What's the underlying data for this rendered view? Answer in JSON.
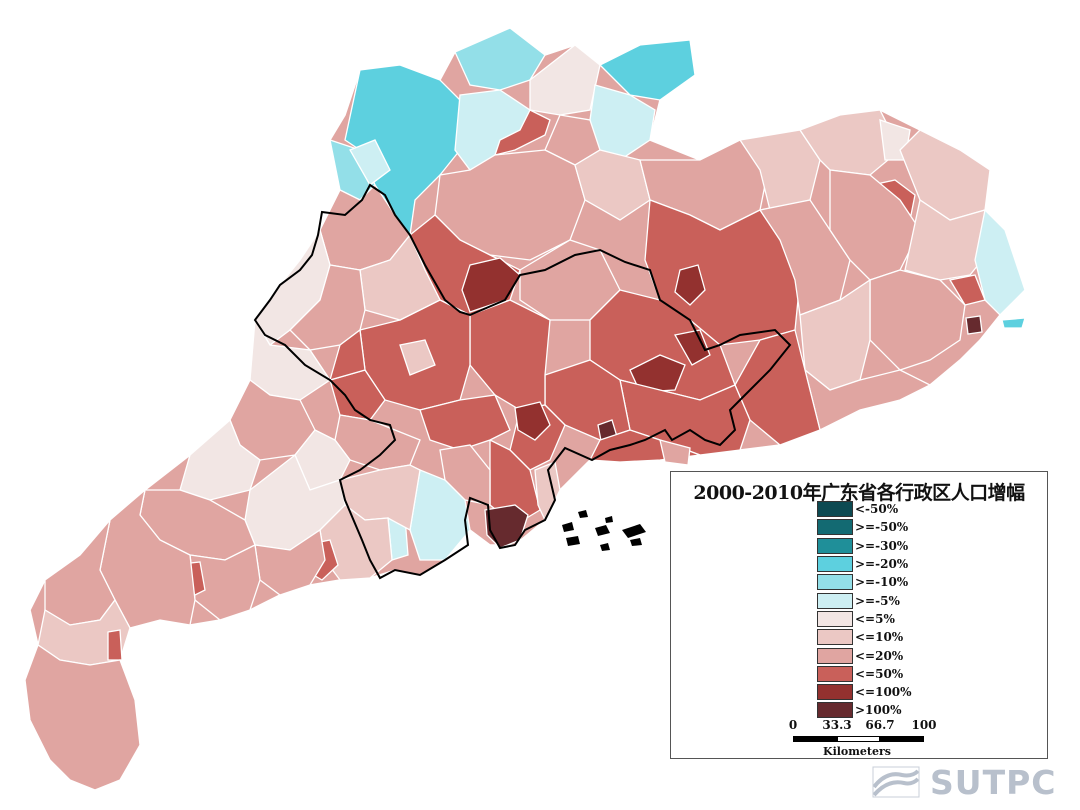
{
  "map": {
    "colors": {
      "lt_neg50": "#0d4a52",
      "ge_neg50": "#136a72",
      "ge_neg30": "#1f8f99",
      "ge_neg20": "#5dd0df",
      "ge_neg10": "#93dfe8",
      "ge_neg5": "#cdeff3",
      "le_5": "#f2e6e4",
      "le_10": "#ebc8c4",
      "le_20": "#e0a5a1",
      "le_50": "#c9605a",
      "le_100": "#93312f",
      "gt_100": "#662a2e",
      "internal_boundary": "#ffffff",
      "highlight_boundary": "#000000"
    },
    "regions": [
      {
        "name": "region",
        "class": "le_20"
      },
      {
        "name": "region",
        "class": "le_10"
      },
      {
        "name": "region",
        "class": "le_5"
      },
      {
        "name": "region",
        "class": "le_50"
      },
      {
        "name": "region",
        "class": "le_100"
      },
      {
        "name": "region",
        "class": "gt_100"
      },
      {
        "name": "region",
        "class": "ge_neg20"
      },
      {
        "name": "region",
        "class": "ge_neg10"
      },
      {
        "name": "region",
        "class": "ge_neg5"
      }
    ]
  },
  "legend": {
    "title": "2000-2010年广东省各行政区人口增幅",
    "items": [
      {
        "label": "<-50%",
        "color": "#0d4a52"
      },
      {
        "label": ">=-50%",
        "color": "#136a72"
      },
      {
        "label": ">=-30%",
        "color": "#1f8f99"
      },
      {
        "label": ">=-20%",
        "color": "#5dd0df"
      },
      {
        "label": ">=-10%",
        "color": "#93dfe8"
      },
      {
        "label": ">=-5%",
        "color": "#cdeff3"
      },
      {
        "label": "<=5%",
        "color": "#f2e6e4"
      },
      {
        "label": "<=10%",
        "color": "#ebc8c4"
      },
      {
        "label": "<=20%",
        "color": "#e0a5a1"
      },
      {
        "label": "<=50%",
        "color": "#c9605a"
      },
      {
        "label": "<=100%",
        "color": "#93312f"
      },
      {
        "label": ">100%",
        "color": "#662a2e"
      }
    ],
    "scale": {
      "ticks": [
        "0",
        "33.3",
        "66.7",
        "100"
      ],
      "unit": "Kilometers"
    }
  },
  "watermark": {
    "text": "SUTPC",
    "logo_icon": "sutpc-logo-icon"
  }
}
